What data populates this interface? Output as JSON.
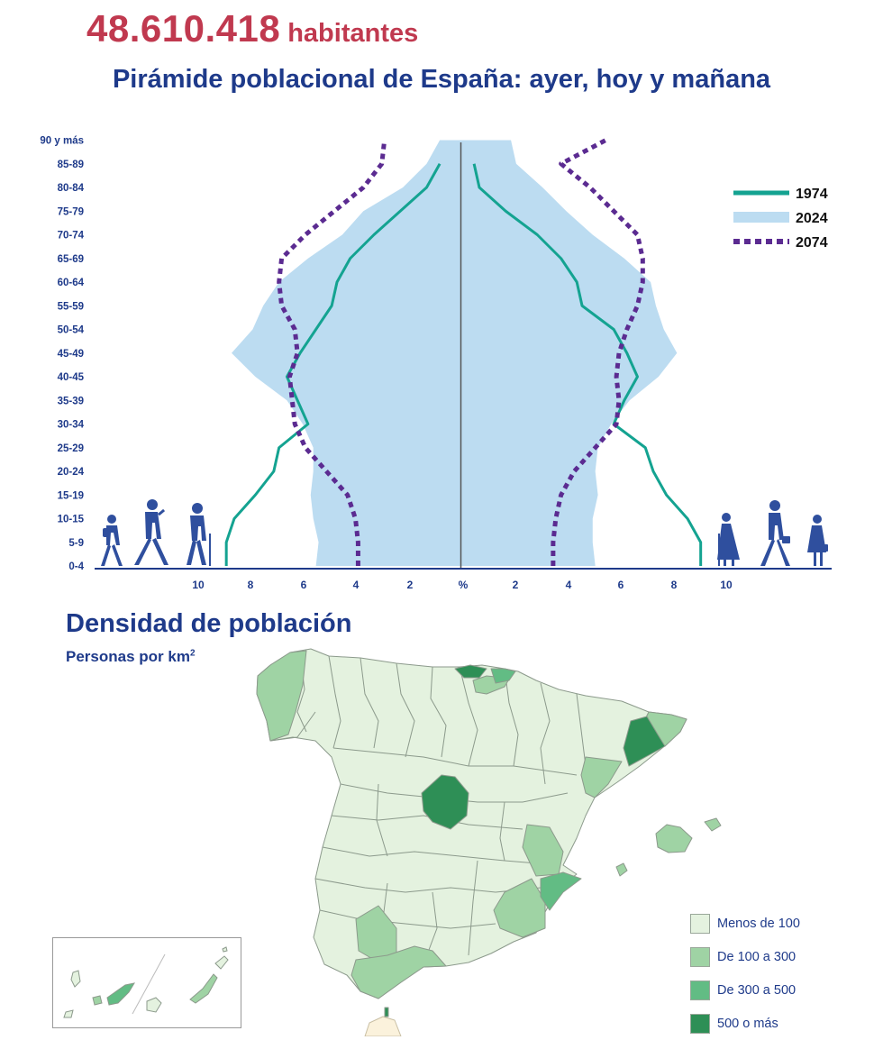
{
  "header": {
    "population_value": "48.610.418",
    "population_unit": "habitantes",
    "title": "Pirámide poblacional de España: ayer, hoy y mañana"
  },
  "chart_data": {
    "type": "population-pyramid",
    "age_groups": [
      "0-4",
      "5-9",
      "10-15",
      "15-19",
      "20-24",
      "25-29",
      "30-34",
      "35-39",
      "40-45",
      "45-49",
      "50-54",
      "55-59",
      "60-64",
      "65-69",
      "70-74",
      "75-79",
      "80-84",
      "85-89",
      "90 y más"
    ],
    "x_tick_labels": [
      "10",
      "8",
      "6",
      "4",
      "2",
      "%",
      "2",
      "4",
      "6",
      "8",
      "10"
    ],
    "xlim": [
      -10,
      10
    ],
    "series": [
      {
        "name": "1974",
        "style": "line",
        "color": "#14a391",
        "left": [
          8.9,
          8.9,
          8.6,
          7.8,
          7.1,
          6.9,
          5.8,
          6.2,
          6.6,
          6.1,
          5.5,
          4.9,
          4.7,
          4.2,
          3.3,
          2.3,
          1.3,
          0.8,
          null
        ],
        "right": [
          9.1,
          9.1,
          8.6,
          7.8,
          7.3,
          7.0,
          5.8,
          6.2,
          6.7,
          6.3,
          5.8,
          4.6,
          4.4,
          3.8,
          2.9,
          1.7,
          0.7,
          0.5,
          null
        ]
      },
      {
        "name": "2024",
        "style": "area",
        "color": "#bcdcf1",
        "left": [
          5.5,
          5.4,
          5.6,
          5.7,
          5.6,
          5.6,
          6.0,
          6.6,
          7.8,
          8.7,
          7.9,
          7.5,
          6.9,
          5.8,
          4.5,
          3.7,
          2.2,
          1.3,
          0.8
        ],
        "right": [
          5.1,
          5.0,
          5.0,
          5.2,
          5.1,
          5.2,
          5.7,
          6.4,
          7.5,
          8.2,
          7.7,
          7.4,
          7.2,
          6.2,
          5.0,
          4.0,
          3.1,
          2.1,
          1.9
        ]
      },
      {
        "name": "2074",
        "style": "dotted",
        "color": "#5b2b91",
        "left": [
          3.9,
          3.9,
          4.0,
          4.3,
          5.1,
          5.9,
          6.3,
          6.4,
          6.5,
          6.2,
          6.3,
          6.8,
          6.9,
          6.8,
          5.9,
          4.8,
          3.7,
          3.0,
          2.9
        ],
        "right": [
          3.5,
          3.5,
          3.6,
          3.8,
          4.3,
          5.1,
          5.9,
          6.0,
          5.9,
          6.0,
          6.3,
          6.7,
          6.9,
          6.9,
          6.7,
          5.8,
          4.9,
          3.8,
          5.5
        ]
      }
    ]
  },
  "map_section": {
    "title": "Densidad de población",
    "subtitle": "Personas por km",
    "subtitle_sup": "2",
    "legend": [
      {
        "label": "Menos de 100",
        "color": "#e4f2df"
      },
      {
        "label": "De 100 a 300",
        "color": "#9fd3a4"
      },
      {
        "label": "De 300 a 500",
        "color": "#62bc84"
      },
      {
        "label": "500 o más",
        "color": "#2e8f56"
      }
    ]
  }
}
